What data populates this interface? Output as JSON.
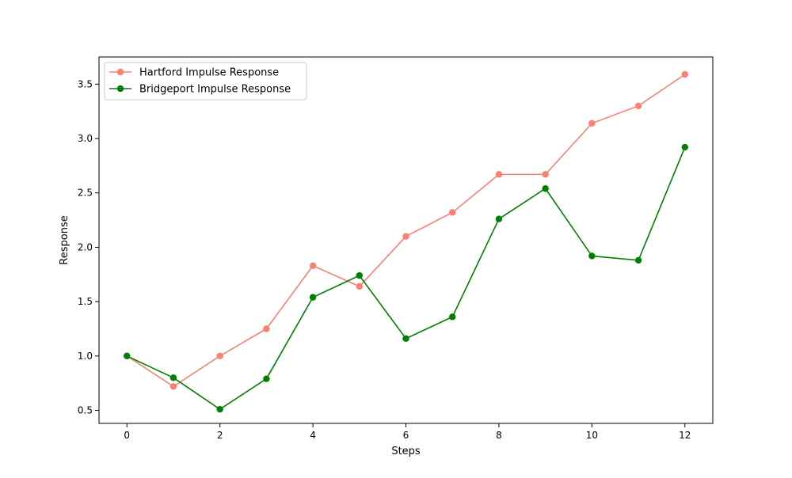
{
  "chart_data": {
    "type": "line",
    "title": "",
    "xlabel": "Steps",
    "ylabel": "Response",
    "x": [
      0,
      1,
      2,
      3,
      4,
      5,
      6,
      7,
      8,
      9,
      10,
      11,
      12
    ],
    "xlim": [
      -0.6,
      12.6
    ],
    "ylim": [
      0.38,
      3.75
    ],
    "xticks": [
      0,
      2,
      4,
      6,
      8,
      10,
      12
    ],
    "yticks": [
      0.5,
      1.0,
      1.5,
      2.0,
      2.5,
      3.0,
      3.5
    ],
    "ytick_labels": [
      "0.5",
      "1.0",
      "1.5",
      "2.0",
      "2.5",
      "3.0",
      "3.5"
    ],
    "grid": false,
    "legend_position": "top-left",
    "series": [
      {
        "name": "Hartford Impulse Response",
        "color": "#fa8072",
        "marker": "circle",
        "values": [
          1.0,
          0.72,
          1.0,
          1.25,
          1.83,
          1.64,
          2.1,
          2.32,
          2.67,
          2.67,
          3.14,
          3.3,
          3.59
        ]
      },
      {
        "name": "Bridgeport Impulse Response",
        "color": "#008000",
        "marker": "circle",
        "values": [
          1.0,
          0.8,
          0.51,
          0.79,
          1.54,
          1.74,
          1.16,
          1.36,
          2.26,
          2.54,
          1.92,
          1.88,
          2.92
        ]
      }
    ]
  }
}
